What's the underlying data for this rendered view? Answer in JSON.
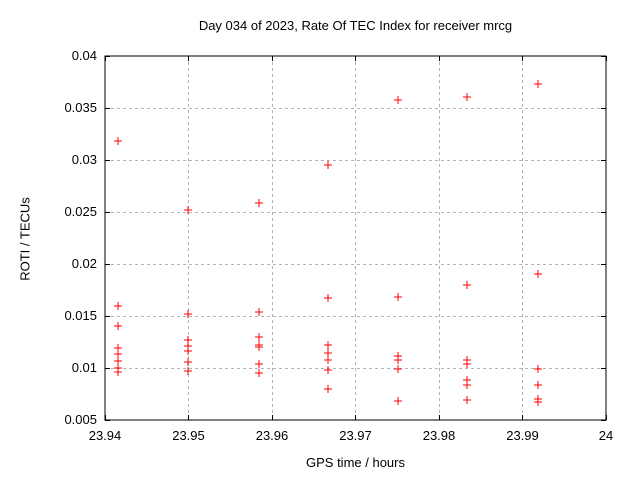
{
  "chart_data": {
    "type": "scatter",
    "title": "Day 034 of 2023, Rate Of TEC Index for receiver mrcg",
    "xlabel": "GPS time / hours",
    "ylabel": "ROTI / TECUs",
    "xlim": [
      23.94,
      24
    ],
    "ylim": [
      0.005,
      0.04
    ],
    "xticks": [
      {
        "v": 23.94,
        "label": "23.94"
      },
      {
        "v": 23.95,
        "label": "23.95"
      },
      {
        "v": 23.96,
        "label": "23.96"
      },
      {
        "v": 23.97,
        "label": "23.97"
      },
      {
        "v": 23.98,
        "label": "23.98"
      },
      {
        "v": 23.99,
        "label": "23.99"
      },
      {
        "v": 24.0,
        "label": "24"
      }
    ],
    "yticks": [
      {
        "v": 0.005,
        "label": "0.005"
      },
      {
        "v": 0.01,
        "label": "0.01"
      },
      {
        "v": 0.015,
        "label": "0.015"
      },
      {
        "v": 0.02,
        "label": "0.02"
      },
      {
        "v": 0.025,
        "label": "0.025"
      },
      {
        "v": 0.03,
        "label": "0.03"
      },
      {
        "v": 0.035,
        "label": "0.035"
      },
      {
        "v": 0.04,
        "label": "0.04"
      }
    ],
    "grid": true,
    "legend": "none",
    "marker": "plus",
    "colors": {
      "marker": "#ff0000",
      "grid": "#b3b3b3",
      "axis": "#000000",
      "text": "#000000",
      "background": "#ffffff"
    },
    "series": [
      {
        "points": [
          [
            23.9416,
            0.0318
          ],
          [
            23.9416,
            0.016
          ],
          [
            23.9416,
            0.014
          ],
          [
            23.9416,
            0.0119
          ],
          [
            23.9416,
            0.0113
          ],
          [
            23.9416,
            0.0107
          ],
          [
            23.9416,
            0.01
          ],
          [
            23.9416,
            0.0096
          ],
          [
            23.95,
            0.0252
          ],
          [
            23.95,
            0.0152
          ],
          [
            23.95,
            0.0127
          ],
          [
            23.95,
            0.0121
          ],
          [
            23.95,
            0.0116
          ],
          [
            23.95,
            0.0106
          ],
          [
            23.95,
            0.0097
          ],
          [
            23.9584,
            0.0259
          ],
          [
            23.9584,
            0.0154
          ],
          [
            23.9584,
            0.013
          ],
          [
            23.9584,
            0.0122
          ],
          [
            23.9584,
            0.012
          ],
          [
            23.9584,
            0.0104
          ],
          [
            23.9584,
            0.0095
          ],
          [
            23.9667,
            0.0295
          ],
          [
            23.9667,
            0.0167
          ],
          [
            23.9667,
            0.0122
          ],
          [
            23.9667,
            0.0114
          ],
          [
            23.9667,
            0.0108
          ],
          [
            23.9667,
            0.0098
          ],
          [
            23.9667,
            0.008
          ],
          [
            23.9751,
            0.0358
          ],
          [
            23.9751,
            0.0168
          ],
          [
            23.9751,
            0.0112
          ],
          [
            23.9751,
            0.0108
          ],
          [
            23.9751,
            0.0099
          ],
          [
            23.9751,
            0.0068
          ],
          [
            23.9834,
            0.0361
          ],
          [
            23.9834,
            0.018
          ],
          [
            23.9834,
            0.0108
          ],
          [
            23.9834,
            0.0104
          ],
          [
            23.9834,
            0.0088
          ],
          [
            23.9834,
            0.0084
          ],
          [
            23.9834,
            0.0069
          ],
          [
            23.9918,
            0.0373
          ],
          [
            23.9918,
            0.019
          ],
          [
            23.9918,
            0.0099
          ],
          [
            23.9918,
            0.0084
          ],
          [
            23.9918,
            0.007
          ],
          [
            23.9918,
            0.0067
          ]
        ]
      }
    ]
  }
}
